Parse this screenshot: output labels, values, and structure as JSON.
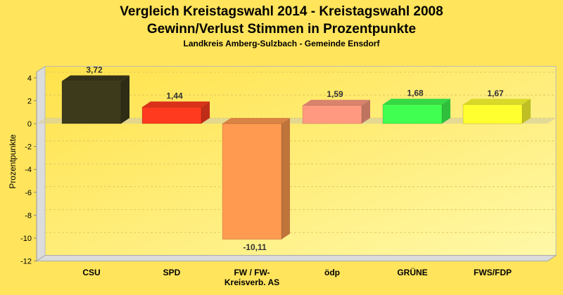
{
  "chart_data": {
    "type": "bar",
    "title": "Vergleich Kreistagswahl 2014 - Kreistagswahl 2008",
    "subtitle": "Gewinn/Verlust Stimmen in Prozentpunkte",
    "subsubtitle": "Landkreis Amberg-Sulzbach - Gemeinde Ensdorf",
    "xlabel": "",
    "ylabel": "Prozentpunkte",
    "ylim": [
      -12,
      5
    ],
    "yticks": [
      4,
      2,
      0,
      -2,
      -4,
      -6,
      -8,
      -10,
      -12
    ],
    "grid": true,
    "categories": [
      [
        "CSU"
      ],
      [
        "SPD"
      ],
      [
        "FW / FW-",
        "Kreisverb. AS"
      ],
      [
        "ödp"
      ],
      [
        "GRÜNE"
      ],
      [
        "FWS/FDP"
      ]
    ],
    "values": [
      3.72,
      1.44,
      -10.11,
      1.59,
      1.68,
      1.67
    ],
    "value_labels": [
      "3,72",
      "1,44",
      "-10,11",
      "1,59",
      "1,68",
      "1,67"
    ],
    "colors": [
      "#3d3a1c",
      "#ff3a1e",
      "#ff9a50",
      "#ff9a80",
      "#40ff50",
      "#ffff30"
    ]
  }
}
